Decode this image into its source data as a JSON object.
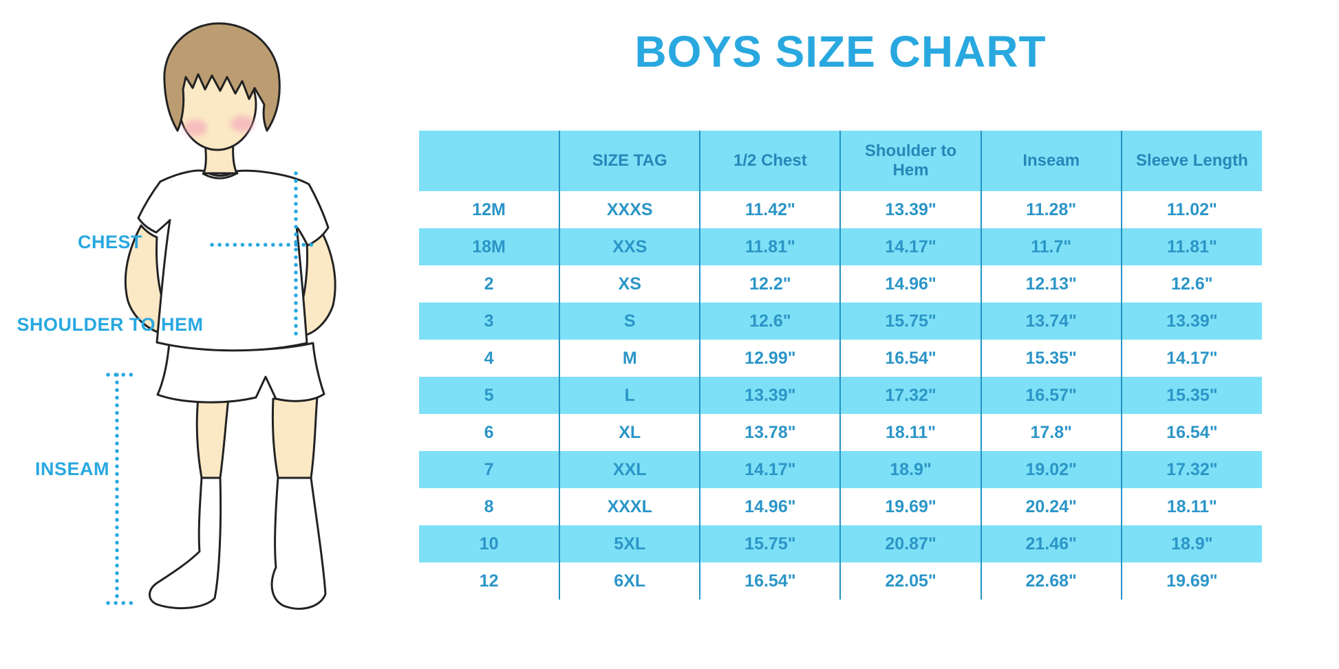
{
  "page": {
    "title": "BOYS SIZE CHART"
  },
  "colors": {
    "accent_blue": "#29A8E0",
    "band_blue": "#7DE0F6",
    "divider_blue": "#2292C5",
    "table_text_blue": "#2B95C7",
    "header_text_blue": "#2687B8",
    "skin": "#FBE8C5",
    "hair": "#BC9D72",
    "cheek": "#F2A2B8",
    "outline": "#222222"
  },
  "diagram": {
    "chest_label": "CHEST",
    "shoulder_to_hem_label": "SHOULDER TO HEM",
    "inseam_label": "INSEAM"
  },
  "chart_data": {
    "type": "table",
    "title": "BOYS SIZE CHART",
    "columns": [
      "",
      "SIZE TAG",
      "1/2 Chest",
      "Shoulder to Hem",
      "Inseam",
      "Sleeve Length"
    ],
    "rows": [
      [
        "12M",
        "XXXS",
        "11.42\"",
        "13.39\"",
        "11.28\"",
        "11.02\""
      ],
      [
        "18M",
        "XXS",
        "11.81\"",
        "14.17\"",
        "11.7\"",
        "11.81\""
      ],
      [
        "2",
        "XS",
        "12.2\"",
        "14.96\"",
        "12.13\"",
        "12.6\""
      ],
      [
        "3",
        "S",
        "12.6\"",
        "15.75\"",
        "13.74\"",
        "13.39\""
      ],
      [
        "4",
        "M",
        "12.99\"",
        "16.54\"",
        "15.35\"",
        "14.17\""
      ],
      [
        "5",
        "L",
        "13.39\"",
        "17.32\"",
        "16.57\"",
        "15.35\""
      ],
      [
        "6",
        "XL",
        "13.78\"",
        "18.11\"",
        "17.8\"",
        "16.54\""
      ],
      [
        "7",
        "XXL",
        "14.17\"",
        "18.9\"",
        "19.02\"",
        "17.32\""
      ],
      [
        "8",
        "XXXL",
        "14.96\"",
        "19.69\"",
        "20.24\"",
        "18.11\""
      ],
      [
        "10",
        "5XL",
        "15.75\"",
        "20.87\"",
        "21.46\"",
        "18.9\""
      ],
      [
        "12",
        "6XL",
        "16.54\"",
        "22.05\"",
        "22.68\"",
        "19.69\""
      ]
    ],
    "banded_row_indices": [
      1,
      3,
      5,
      7,
      9
    ],
    "units": "inches"
  }
}
